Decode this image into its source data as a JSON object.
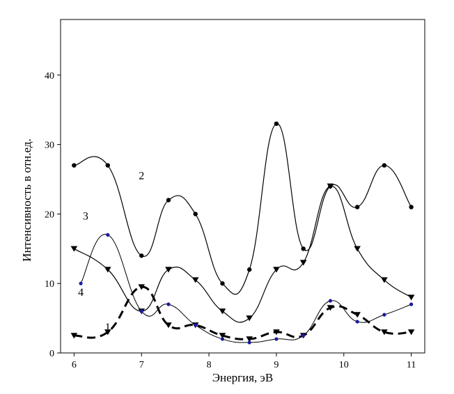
{
  "chart_data": {
    "type": "line",
    "title": "",
    "xlabel": "Энергия, эВ",
    "ylabel": "Интенсивность в отн.ед.",
    "xlim": [
      5.8,
      11.2
    ],
    "ylim": [
      0,
      48
    ],
    "xticks": [
      6,
      7,
      8,
      9,
      10,
      11
    ],
    "yticks": [
      0,
      10,
      20,
      30,
      40
    ],
    "grid": false,
    "series": [
      {
        "name": "1",
        "style": "dashed-thick",
        "marker": "triangle-down",
        "color": "#000000",
        "x": [
          6,
          6.5,
          7,
          7.4,
          7.8,
          8.2,
          8.6,
          9,
          9.4,
          9.8,
          10.2,
          10.6,
          11
        ],
        "y": [
          2.5,
          3,
          9.5,
          4,
          4,
          2.5,
          2,
          3,
          2.5,
          6.5,
          5.5,
          3,
          3
        ]
      },
      {
        "name": "2",
        "style": "solid",
        "marker": "circle",
        "color": "#000000",
        "x": [
          6,
          6.5,
          7,
          7.4,
          7.8,
          8.2,
          8.6,
          9,
          9.4,
          9.8,
          10.2,
          10.6,
          11
        ],
        "y": [
          27,
          27,
          14,
          22,
          20,
          10,
          12,
          33,
          15,
          24,
          21,
          27,
          21
        ]
      },
      {
        "name": "3",
        "style": "solid",
        "marker": "triangle-down",
        "color": "#000000",
        "x": [
          6,
          6.5,
          7,
          7.4,
          7.8,
          8.2,
          8.6,
          9,
          9.4,
          9.8,
          10.2,
          10.6,
          11
        ],
        "y": [
          15,
          12,
          6,
          12,
          10.5,
          6,
          5,
          12,
          13,
          24,
          15,
          10.5,
          8
        ]
      },
      {
        "name": "4",
        "style": "solid-thin",
        "marker": "circle-blue",
        "color": "#000000",
        "marker_color": "#1a1aa0",
        "x": [
          6.1,
          6.5,
          7,
          7.4,
          7.8,
          8.2,
          8.6,
          9,
          9.4,
          9.8,
          10.2,
          10.6,
          11
        ],
        "y": [
          10,
          17,
          6,
          7,
          4,
          2,
          1.5,
          2,
          2.5,
          7.5,
          4.5,
          5.5,
          7
        ]
      }
    ],
    "annotations": [
      {
        "text": "1",
        "x": 6.5,
        "y": 3.2
      },
      {
        "text": "2",
        "x": 7.0,
        "y": 25
      },
      {
        "text": "3",
        "x": 6.17,
        "y": 19.2
      },
      {
        "text": "4",
        "x": 6.1,
        "y": 8.2
      }
    ]
  }
}
